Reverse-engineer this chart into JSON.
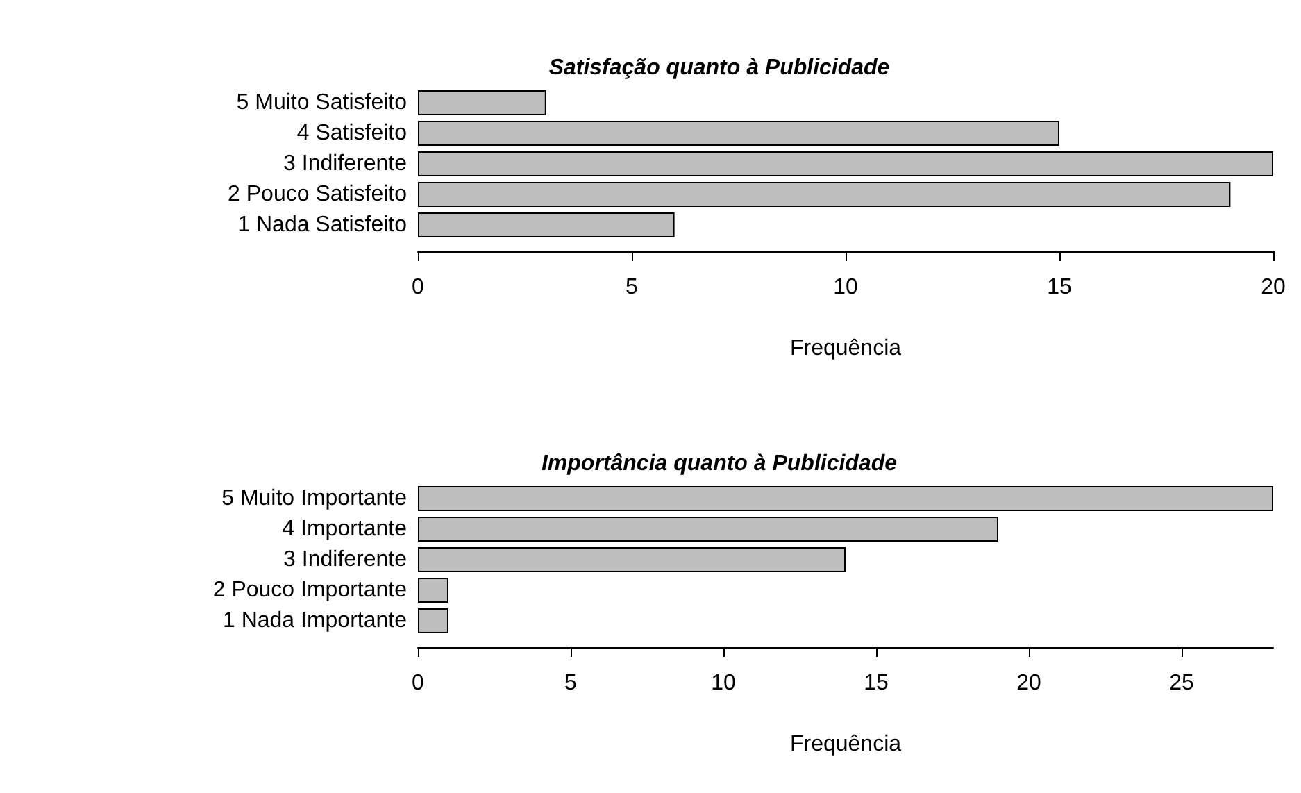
{
  "chart_data": [
    {
      "type": "bar",
      "orientation": "horizontal",
      "title": "Satisfação quanto à Publicidade",
      "xlabel": "Frequência",
      "categories": [
        "5 Muito Satisfeito",
        "4 Satisfeito",
        "3 Indiferente",
        "2 Pouco Satisfeito",
        "1 Nada Satisfeito"
      ],
      "values": [
        3,
        15,
        20,
        19,
        6
      ],
      "color": "#bebebe",
      "xlim": [
        0,
        20
      ],
      "xticks": [
        0,
        5,
        10,
        15,
        20
      ],
      "grid": false
    },
    {
      "type": "bar",
      "orientation": "horizontal",
      "title": "Importância quanto à Publicidade",
      "xlabel": "Frequência",
      "categories": [
        "5 Muito Importante",
        "4 Importante",
        "3 Indiferente",
        "2 Pouco Importante",
        "1 Nada Importante"
      ],
      "values": [
        28,
        19,
        14,
        1,
        1
      ],
      "color": "#bebebe",
      "xlim": [
        0,
        28
      ],
      "xticks": [
        0,
        5,
        10,
        15,
        20,
        25
      ],
      "grid": false
    }
  ]
}
